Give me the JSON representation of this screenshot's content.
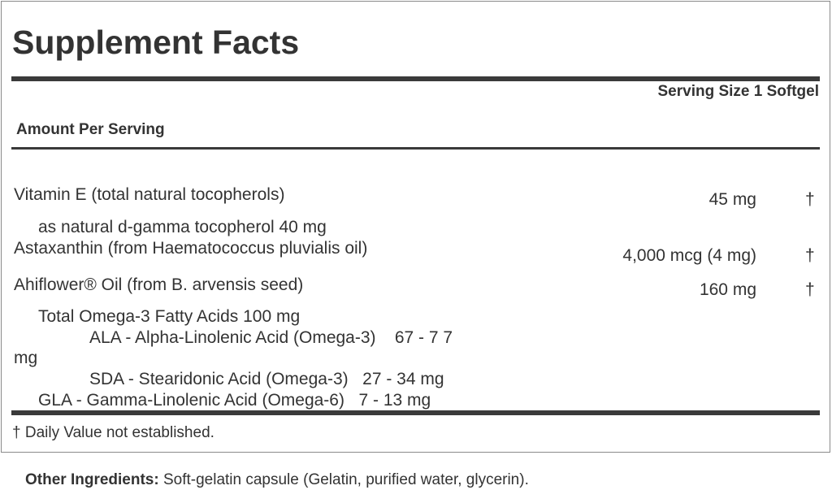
{
  "title": "Supplement Facts",
  "serving_size": "Serving Size 1 Softgel",
  "amount_per_serving": "Amount Per Serving",
  "rows": [
    {
      "name": "Vitamin E (total natural tocopherols)",
      "amount": "45 mg",
      "dv": "†"
    },
    {
      "name": "as natural d-gamma tocopherol   40 mg"
    },
    {
      "name": "Astaxanthin (from Haematococcus pluvialis oil)",
      "amount": "4,000 mcg (4 mg)",
      "dv": "†"
    },
    {
      "name": "Ahiflower® Oil (from B. arvensis seed)",
      "amount": "160 mg",
      "dv": "†"
    },
    {
      "name": "Total Omega-3 Fatty Acids   100 mg"
    },
    {
      "name": "ALA - Alpha-Linolenic Acid (Omega-3)    67 - 7 7"
    },
    {
      "name": "mg"
    },
    {
      "name": "SDA - Stearidonic Acid (Omega-3)   27 - 34 mg"
    },
    {
      "name": "GLA - Gamma-Linolenic Acid (Omega-6)   7 - 13 mg"
    }
  ],
  "footnote": "† Daily Value not established.",
  "other_ingredients": {
    "label": "Other Ingredients:",
    "text": " Soft-gelatin capsule (Gelatin, purified water, glycerin)."
  }
}
